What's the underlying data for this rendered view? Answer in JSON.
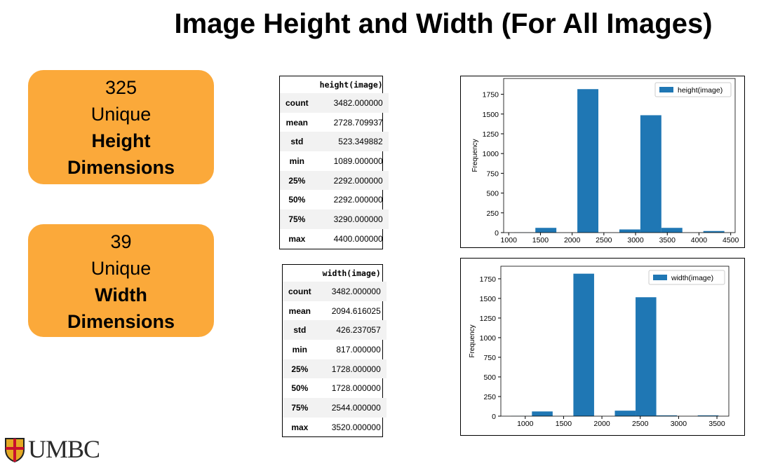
{
  "title": "Image Height and Width (For All Images)",
  "boxes": [
    {
      "number": "325",
      "label": "Unique",
      "emphasis": [
        "Height",
        "Dimensions"
      ]
    },
    {
      "number": "39",
      "label": "Unique",
      "emphasis": [
        "Width",
        "Dimensions"
      ]
    }
  ],
  "tables": [
    {
      "header": "height(image)",
      "rows": [
        [
          "count",
          "3482.000000"
        ],
        [
          "mean",
          "2728.709937"
        ],
        [
          "std",
          "523.349882"
        ],
        [
          "min",
          "1089.000000"
        ],
        [
          "25%",
          "2292.000000"
        ],
        [
          "50%",
          "2292.000000"
        ],
        [
          "75%",
          "3290.000000"
        ],
        [
          "max",
          "4400.000000"
        ]
      ]
    },
    {
      "header": "width(image)",
      "rows": [
        [
          "count",
          "3482.000000"
        ],
        [
          "mean",
          "2094.616025"
        ],
        [
          "std",
          "426.237057"
        ],
        [
          "min",
          "817.000000"
        ],
        [
          "25%",
          "1728.000000"
        ],
        [
          "50%",
          "1728.000000"
        ],
        [
          "75%",
          "2544.000000"
        ],
        [
          "max",
          "3520.000000"
        ]
      ]
    }
  ],
  "chart_data": [
    {
      "type": "histogram",
      "ylabel": "Frequency",
      "bins": [
        1089,
        1420.1,
        1751.2,
        2082.3,
        2413.4,
        2744.5,
        3075.6,
        3406.7,
        3737.8,
        4068.9,
        4400
      ],
      "series": [
        {
          "name": "height(image)",
          "color": "#1f77b4",
          "values": [
            2,
            60,
            0,
            1815,
            0,
            40,
            1485,
            60,
            0,
            20
          ]
        }
      ],
      "xlim": [
        920,
        4570
      ],
      "xticks": [
        1000,
        1500,
        2000,
        2500,
        3000,
        3500,
        4000,
        4500
      ],
      "ylim": [
        0,
        1950
      ],
      "yticks": [
        0,
        250,
        500,
        750,
        1000,
        1250,
        1500,
        1750
      ],
      "legend": "upper right"
    },
    {
      "type": "histogram",
      "ylabel": "Frequency",
      "bins": [
        817,
        1087.3,
        1357.6,
        1627.9,
        1898.2,
        2168.5,
        2438.8,
        2709.1,
        2979.4,
        3249.7,
        3520
      ],
      "series": [
        {
          "name": "width(image)",
          "color": "#1f77b4",
          "values": [
            2,
            60,
            0,
            1815,
            0,
            70,
            1515,
            10,
            0,
            10
          ]
        }
      ],
      "xlim": [
        682,
        3655
      ],
      "xticks": [
        1000,
        1500,
        2000,
        2500,
        3000,
        3500
      ],
      "ylim": [
        0,
        1910
      ],
      "yticks": [
        0,
        250,
        500,
        750,
        1000,
        1250,
        1500,
        1750
      ],
      "legend": "upper right"
    }
  ],
  "logo": "UMBC"
}
